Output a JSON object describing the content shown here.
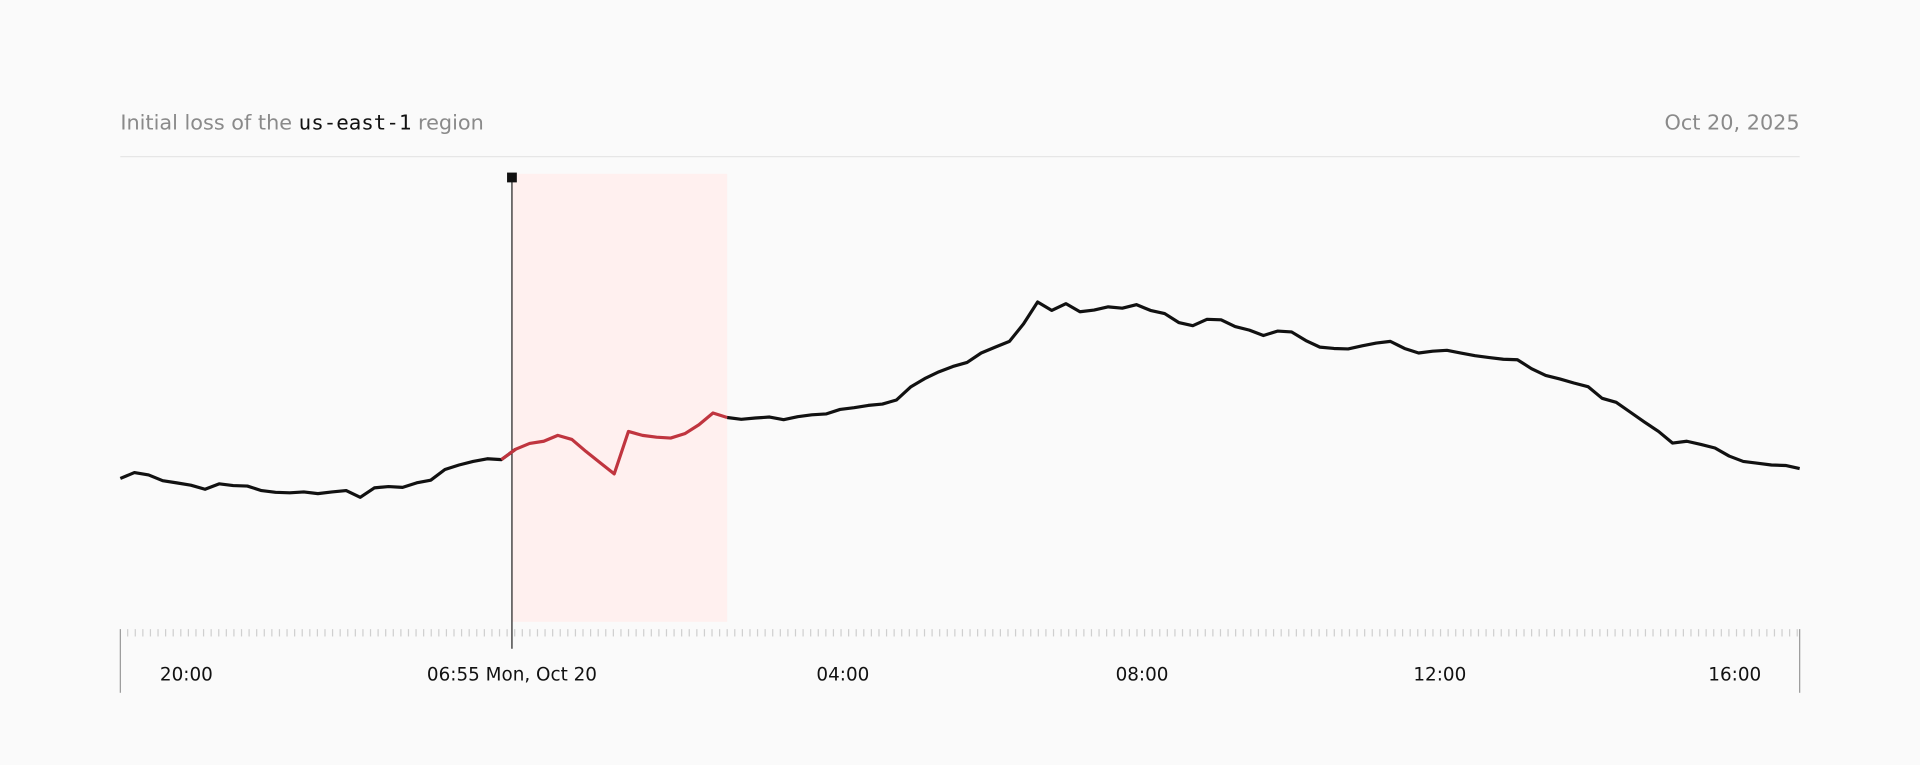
{
  "chart_data": {
    "type": "line",
    "title_prefix": "Initial loss of the",
    "title_code": "us-east-1",
    "title_suffix": "region",
    "date": "Oct 20, 2025",
    "series": [
      {
        "color": "#111111",
        "values": [
          32.0,
          33.3,
          32.8,
          31.5,
          31.0,
          30.5,
          29.6,
          30.8,
          30.4,
          30.3,
          29.3,
          28.9,
          28.8,
          29.0,
          28.6,
          29.0,
          29.3,
          27.8,
          29.9,
          30.2,
          30.0,
          31.0,
          31.6,
          34.0,
          35.0,
          35.8,
          36.4,
          36.2,
          38.5,
          39.8,
          40.3,
          41.6,
          40.7,
          38.0,
          35.5,
          33.0,
          42.5,
          41.6,
          41.2,
          41.0,
          42.0,
          44.0,
          46.6,
          45.6,
          45.2,
          45.5,
          45.7,
          45.1,
          45.8,
          46.2,
          46.4,
          47.4,
          47.8,
          48.3,
          48.6,
          49.5,
          52.4,
          54.3,
          55.8,
          57.0,
          57.9,
          60.0,
          61.3,
          62.6,
          66.5,
          71.4,
          69.5,
          71.0,
          69.2,
          69.6,
          70.3,
          70.0,
          70.8,
          69.5,
          68.8,
          66.8,
          66.1,
          67.5,
          67.4,
          65.9,
          65.1,
          63.9,
          64.9,
          64.7,
          62.8,
          61.3,
          61.0,
          60.9,
          61.6,
          62.2,
          62.6,
          61.0,
          60.0,
          60.4,
          60.6,
          60.0,
          59.4,
          59.0,
          58.6,
          58.5,
          56.5,
          55.0,
          54.2,
          53.3,
          52.5,
          49.9,
          49.0,
          46.8,
          44.6,
          42.5,
          39.9,
          40.3,
          39.6,
          38.8,
          37.0,
          35.8,
          35.4,
          35.0,
          34.9,
          34.2
        ]
      }
    ],
    "highlight": {
      "start": 27.75,
      "end": 43,
      "color": "#c0353f",
      "fill": "#fff0ef"
    },
    "xlim": [
      0,
      119
    ],
    "ylim": [
      0,
      100
    ],
    "xticks": [
      {
        "value": 4.68,
        "label": "20:00"
      },
      {
        "value": 27.75,
        "label": "06:55 Mon, Oct 20"
      },
      {
        "value": 51.2,
        "label": "04:00"
      },
      {
        "value": 72.4,
        "label": "08:00"
      },
      {
        "value": 93.5,
        "label": "12:00"
      },
      {
        "value": 114.4,
        "label": "16:00"
      }
    ]
  }
}
